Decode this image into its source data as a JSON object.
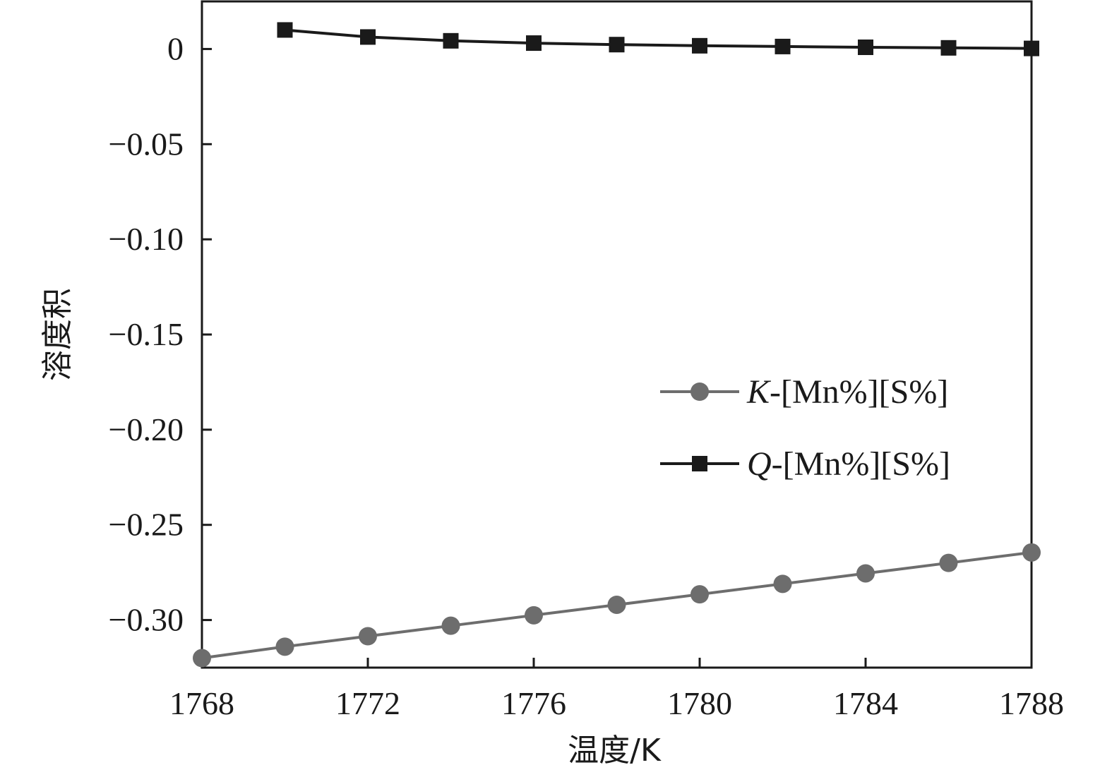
{
  "chart_data": {
    "type": "line",
    "title": "",
    "xlabel": "温度/K",
    "ylabel": "溶度积",
    "xlim": [
      1768,
      1788
    ],
    "ylim": [
      -0.325,
      0.025
    ],
    "x_ticks": [
      "1768",
      "1772",
      "1776",
      "1780",
      "1784",
      "1788"
    ],
    "y_ticks": [
      "0",
      "−0.05",
      "−0.10",
      "−0.15",
      "−0.20",
      "−0.25",
      "−0.30"
    ],
    "y_tick_values": [
      0,
      -0.05,
      -0.1,
      -0.15,
      -0.2,
      -0.25,
      -0.3
    ],
    "x_tick_values": [
      1768,
      1772,
      1776,
      1780,
      1784,
      1788
    ],
    "grid": false,
    "legend_position": "center-right",
    "series": [
      {
        "name": "K-[Mn%][S%]",
        "name_italic_part": "K",
        "name_rest": "-[Mn%][S%]",
        "color": "#6d6d6d",
        "marker": "circle",
        "x": [
          1768,
          1770,
          1772,
          1774,
          1776,
          1778,
          1780,
          1782,
          1784,
          1786,
          1788
        ],
        "values": [
          -0.32,
          -0.314,
          -0.3085,
          -0.303,
          -0.2975,
          -0.292,
          -0.2865,
          -0.281,
          -0.2755,
          -0.27,
          -0.2645
        ]
      },
      {
        "name": "Q-[Mn%][S%]",
        "name_italic_part": "Q",
        "name_rest": "-[Mn%][S%]",
        "color": "#1a1a1a",
        "marker": "square",
        "x": [
          1770,
          1772,
          1774,
          1776,
          1778,
          1780,
          1782,
          1784,
          1786,
          1788
        ],
        "values": [
          0.01,
          0.0063,
          0.0043,
          0.0031,
          0.0023,
          0.0017,
          0.0013,
          0.0009,
          0.0006,
          0.0003
        ]
      }
    ]
  }
}
